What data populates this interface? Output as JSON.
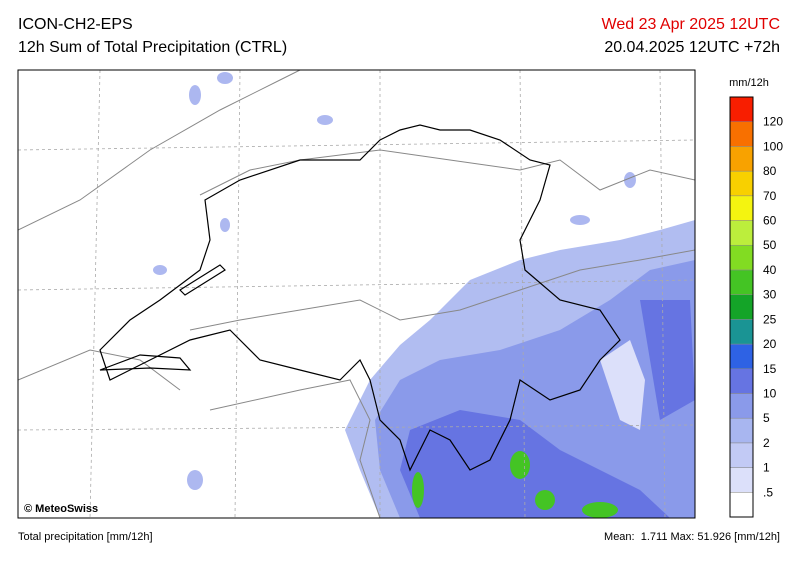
{
  "header": {
    "model": "ICON-CH2-EPS",
    "product": "12h Sum of Total Precipitation (CTRL)",
    "valid_time": "Wed 23 Apr 2025 12UTC",
    "run": "20.04.2025 12UTC +72h"
  },
  "map": {
    "copyright": "© MeteoSwiss"
  },
  "legend": {
    "unit": "mm/12h",
    "labels": [
      ".5",
      "1",
      "2",
      "5",
      "10",
      "15",
      "20",
      "25",
      "30",
      "40",
      "50",
      "60",
      "70",
      "80",
      "100",
      "120"
    ],
    "colors": [
      "#ffffff",
      "#dce0fa",
      "#c2caf5",
      "#a8b6f0",
      "#8a9aea",
      "#6674e2",
      "#2e62e4",
      "#1a9494",
      "#14a428",
      "#44c424",
      "#82dc22",
      "#bcee3c",
      "#f4f410",
      "#f8d000",
      "#f8a200",
      "#f87000",
      "#f81e00"
    ]
  },
  "footer": {
    "caption": "Total precipitation [mm/12h]",
    "mean_label": "Mean:",
    "mean": 1.711,
    "max_label": "Max:",
    "max": 51.926,
    "unit": "[mm/12h]"
  }
}
